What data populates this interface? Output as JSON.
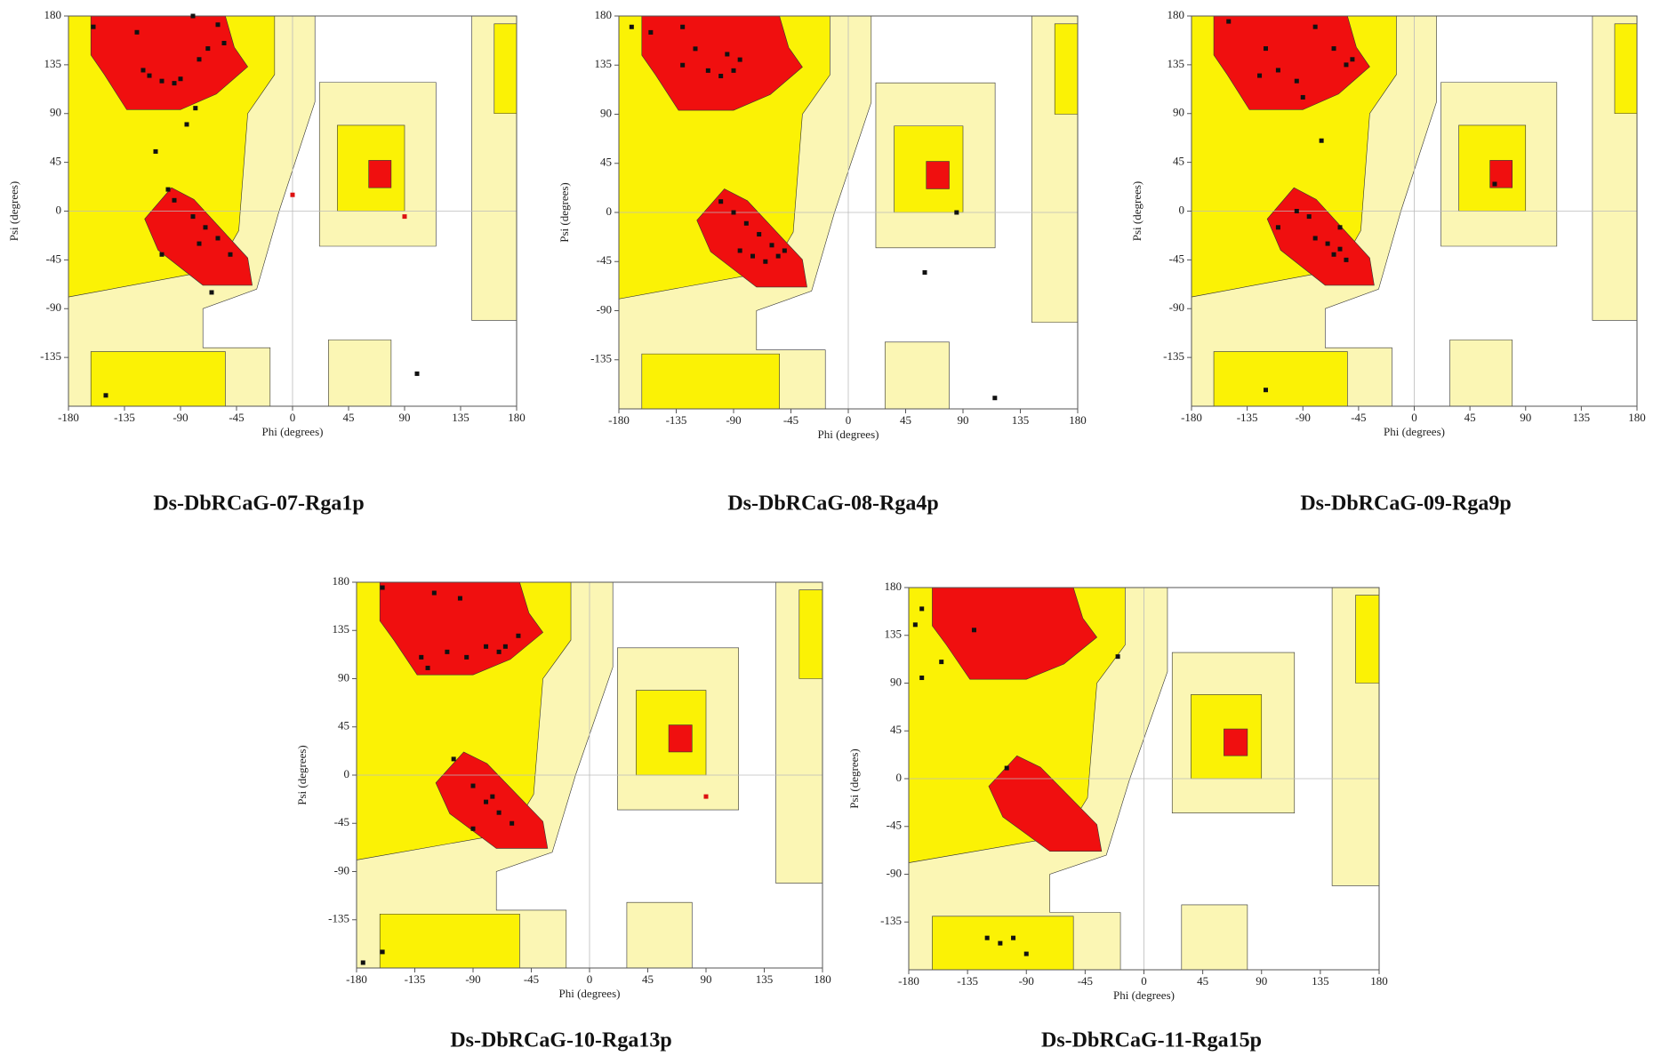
{
  "chart_data": [
    {
      "type": "scatter",
      "title": "Ds-DbRCaG-07-Rga1p",
      "x_label": "Phi (degrees)",
      "y_label": "Psi (degrees)",
      "xlim": [
        -180,
        180
      ],
      "ylim": [
        -180,
        180
      ],
      "xticks": [
        -180,
        -135,
        -90,
        -45,
        0,
        45,
        90,
        135,
        180
      ],
      "yticks": [
        -135,
        -90,
        -45,
        0,
        45,
        90,
        135,
        180
      ],
      "series": [
        {
          "color": "#111111",
          "x": [
            -160,
            -125,
            -80,
            -60,
            -115,
            -105,
            -95,
            -90,
            -120,
            -75,
            -68,
            -55,
            -78,
            -85,
            -110,
            -100,
            -95,
            -80,
            -70,
            -60,
            -50,
            -75,
            -105,
            -65,
            -150,
            100
          ],
          "y": [
            170,
            165,
            180,
            172,
            125,
            120,
            118,
            122,
            130,
            140,
            150,
            155,
            95,
            80,
            55,
            20,
            10,
            -5,
            -15,
            -25,
            -40,
            -30,
            -40,
            -75,
            -170,
            -150
          ]
        },
        {
          "color": "#dd1111",
          "x": [
            0,
            90
          ],
          "y": [
            15,
            -5
          ]
        }
      ]
    },
    {
      "type": "scatter",
      "title": "Ds-DbRCaG-08-Rga4p",
      "x_label": "Phi (degrees)",
      "y_label": "Psi (degrees)",
      "xlim": [
        -180,
        180
      ],
      "ylim": [
        -180,
        180
      ],
      "xticks": [
        -180,
        -135,
        -90,
        -45,
        0,
        45,
        90,
        135,
        180
      ],
      "yticks": [
        -135,
        -90,
        -45,
        0,
        45,
        90,
        135,
        180
      ],
      "series": [
        {
          "color": "#111111",
          "x": [
            -170,
            -155,
            -130,
            -120,
            -110,
            -100,
            -90,
            -95,
            -85,
            -130,
            -100,
            -90,
            -80,
            -70,
            -60,
            -55,
            -65,
            -75,
            -85,
            -50,
            60,
            85,
            115
          ],
          "y": [
            170,
            165,
            170,
            150,
            130,
            125,
            130,
            145,
            140,
            135,
            10,
            0,
            -10,
            -20,
            -30,
            -40,
            -45,
            -40,
            -35,
            -35,
            -55,
            0,
            -170
          ]
        }
      ]
    },
    {
      "type": "scatter",
      "title": "Ds-DbRCaG-09-Rga9p",
      "x_label": "Phi (degrees)",
      "y_label": "Psi (degrees)",
      "xlim": [
        -180,
        180
      ],
      "ylim": [
        -180,
        180
      ],
      "xticks": [
        -180,
        -135,
        -90,
        -45,
        0,
        45,
        90,
        135,
        180
      ],
      "yticks": [
        -135,
        -90,
        -45,
        0,
        45,
        90,
        135,
        180
      ],
      "series": [
        {
          "color": "#111111",
          "x": [
            -150,
            -120,
            -125,
            -110,
            -95,
            -90,
            -65,
            -55,
            -50,
            -80,
            -75,
            -95,
            -110,
            -85,
            -80,
            -70,
            -65,
            -60,
            -55,
            -60,
            65,
            -120
          ],
          "y": [
            175,
            150,
            125,
            130,
            120,
            105,
            150,
            135,
            140,
            170,
            65,
            0,
            -15,
            -5,
            -25,
            -30,
            -40,
            -35,
            -45,
            -15,
            25,
            -165
          ]
        }
      ]
    },
    {
      "type": "scatter",
      "title": "Ds-DbRCaG-10-Rga13p",
      "x_label": "Phi (degrees)",
      "y_label": "Psi (degrees)",
      "xlim": [
        -180,
        180
      ],
      "ylim": [
        -180,
        180
      ],
      "xticks": [
        -180,
        -135,
        -90,
        -45,
        0,
        45,
        90,
        135,
        180
      ],
      "yticks": [
        -135,
        -90,
        -45,
        0,
        45,
        90,
        135,
        180
      ],
      "series": [
        {
          "color": "#111111",
          "x": [
            -160,
            -120,
            -100,
            -130,
            -125,
            -110,
            -95,
            -80,
            -70,
            -65,
            -55,
            -90,
            -105,
            -80,
            -70,
            -60,
            -90,
            -75,
            -175,
            -160
          ],
          "y": [
            175,
            170,
            165,
            110,
            100,
            115,
            110,
            120,
            115,
            120,
            130,
            -10,
            15,
            -25,
            -35,
            -45,
            -50,
            -20,
            -175,
            -165
          ]
        },
        {
          "color": "#dd1111",
          "x": [
            90
          ],
          "y": [
            -20
          ]
        }
      ]
    },
    {
      "type": "scatter",
      "title": "Ds-DbRCaG-11-Rga15p",
      "x_label": "Phi (degrees)",
      "y_label": "Psi (degrees)",
      "xlim": [
        -180,
        180
      ],
      "ylim": [
        -180,
        180
      ],
      "xticks": [
        -180,
        -135,
        -90,
        -45,
        0,
        45,
        90,
        135,
        180
      ],
      "yticks": [
        -135,
        -90,
        -45,
        0,
        45,
        90,
        135,
        180
      ],
      "series": [
        {
          "color": "#111111",
          "x": [
            -170,
            -175,
            -155,
            -170,
            -130,
            -20,
            -105,
            -120,
            -100,
            -90,
            -110
          ],
          "y": [
            160,
            145,
            110,
            95,
            140,
            115,
            10,
            -150,
            -150,
            -165,
            -155
          ]
        }
      ]
    }
  ]
}
